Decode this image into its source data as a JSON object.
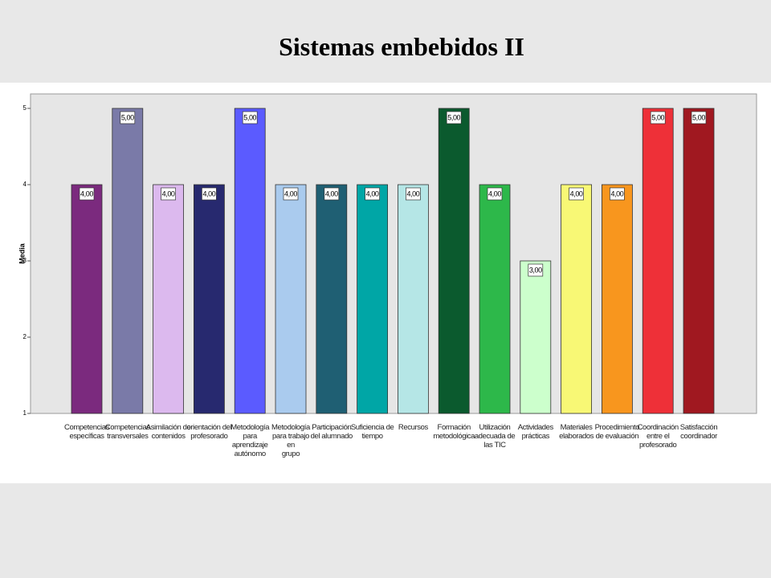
{
  "chart_data": {
    "type": "bar",
    "title": "Sistemas embebidos II",
    "y_label": "Media",
    "categories": [
      "Competencias\nespecíficas",
      "Competencias\ntransversales",
      "Asimilación de\ncontenidos",
      "orientación del\nprofesorado",
      "Metodología\npara\naprendizaje\nautónomo",
      "Metodología\npara trabajo en\ngrupo",
      "Participación\ndel alumnado",
      "Suficiencia de\ntiempo",
      "Recursos",
      "Formación\nmetodológica",
      "Utilización\nadecuada de\nlas TIC",
      "Actividades\nprácticas",
      "Materiales\nelaborados",
      "Procedimiento\nde evaluación",
      "Coordinación\nentre el\nprofesorado",
      "Satisfacción\ncoordinador"
    ],
    "values": [
      4,
      5,
      4,
      4,
      5,
      4,
      4,
      4,
      4,
      5,
      4,
      3,
      4,
      4,
      5,
      5
    ],
    "value_labels": [
      "4,00",
      "5,00",
      "4,00",
      "4,00",
      "5,00",
      "4,00",
      "4,00",
      "4,00",
      "4,00",
      "5,00",
      "4,00",
      "3,00",
      "4,00",
      "4,00",
      "5,00",
      "5,00"
    ],
    "colors": [
      "#7b2a7e",
      "#7a7aa8",
      "#dcb9ee",
      "#27296f",
      "#5b5bff",
      "#aacbee",
      "#1f5f73",
      "#00a6a6",
      "#b5e6e6",
      "#0b5a2e",
      "#2db84a",
      "#ccffcc",
      "#f8f875",
      "#f8961e",
      "#ee3038",
      "#a01820"
    ],
    "ylim": [
      1,
      5
    ],
    "yticks": [
      1,
      2,
      3,
      4,
      5
    ]
  }
}
